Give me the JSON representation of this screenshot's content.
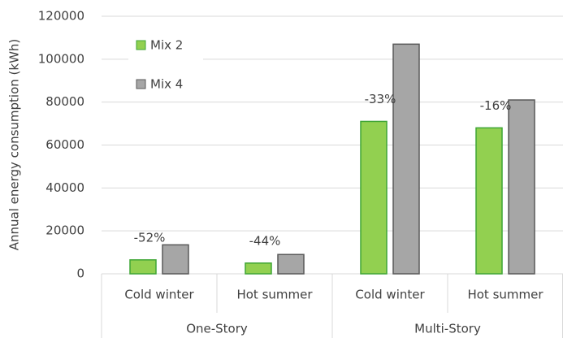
{
  "chart_data": {
    "type": "bar",
    "y_label": "Annual energy consumption (kWh)",
    "categories": [
      "Cold winter",
      "Hot summer",
      "Cold winter",
      "Hot summer"
    ],
    "groups": [
      "One-Story",
      "Multi-Story"
    ],
    "series": [
      {
        "name": "Mix 2",
        "color": "#92d050",
        "edge": "#3fa535",
        "values": [
          6500,
          5000,
          71000,
          68000
        ]
      },
      {
        "name": "Mix 4",
        "color": "#a6a6a6",
        "edge": "#595959",
        "values": [
          13500,
          9000,
          107000,
          81000
        ]
      }
    ],
    "annotations": [
      "-52%",
      "-44%",
      "-33%",
      "-16%"
    ],
    "ylim": [
      0,
      120000
    ],
    "yticks": [
      0,
      20000,
      40000,
      60000,
      80000,
      100000,
      120000
    ],
    "grid": true,
    "legend": "upper-left"
  }
}
